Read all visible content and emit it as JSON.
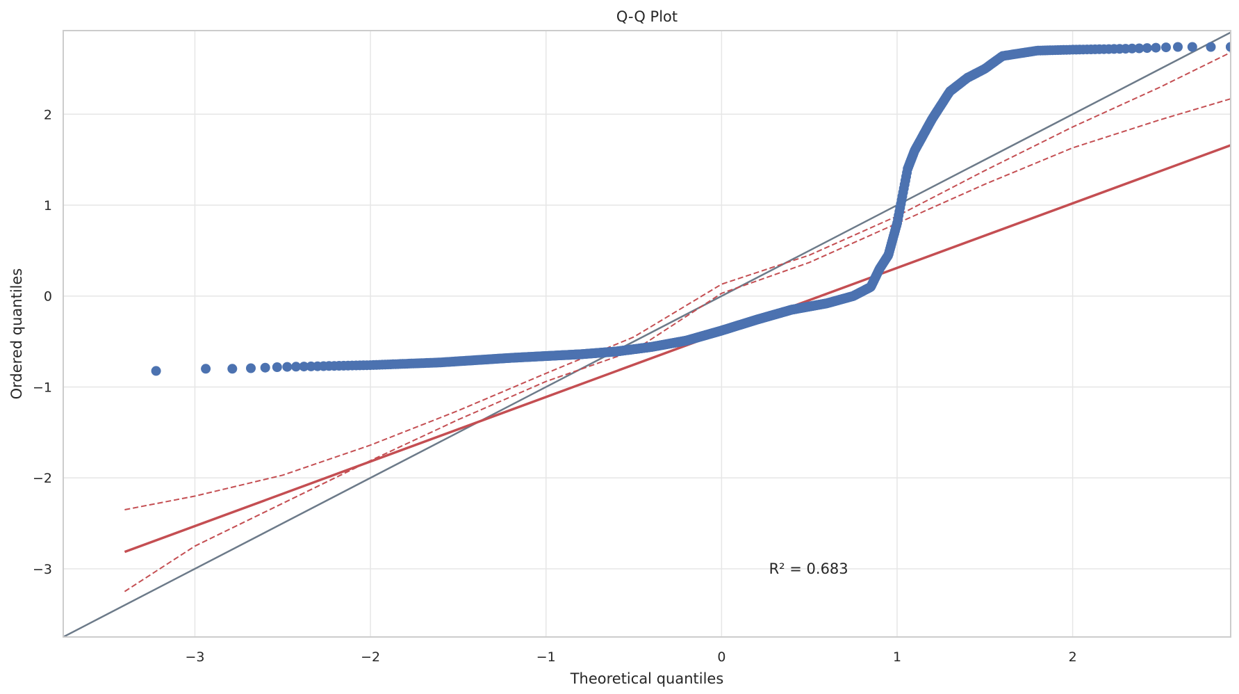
{
  "chart_data": {
    "type": "scatter",
    "title": "Q-Q Plot",
    "xlabel": "Theoretical quantiles",
    "ylabel": "Ordered quantiles",
    "xlim": [
      -3.75,
      2.9
    ],
    "ylim": [
      -3.75,
      2.92
    ],
    "xticks": [
      -3,
      -2,
      -1,
      0,
      1,
      2
    ],
    "yticks": [
      -3,
      -2,
      -1,
      0,
      1,
      2
    ],
    "xtick_labels": [
      "−3",
      "−2",
      "−1",
      "0",
      "1",
      "2"
    ],
    "ytick_labels": [
      "−3",
      "−2",
      "−1",
      "0",
      "1",
      "2"
    ],
    "grid": true,
    "annotation": {
      "text": "R² = 0.683",
      "x": 0.27,
      "y": -3.0
    },
    "colors": {
      "points": "#4c72b0",
      "fit_line": "#c44e52",
      "reference_line": "#6c7a89",
      "grid": "#e6e6e6",
      "frame": "#cccccc"
    },
    "sample_quantile_knots": [
      [
        -3.4,
        -0.85
      ],
      [
        -3.13,
        -0.81
      ],
      [
        -2.99,
        -0.8
      ],
      [
        -2.86,
        -0.8
      ],
      [
        -2.76,
        -0.8
      ],
      [
        -2.5,
        -0.78
      ],
      [
        -2.0,
        -0.76
      ],
      [
        -1.6,
        -0.73
      ],
      [
        -1.2,
        -0.68
      ],
      [
        -1.0,
        -0.66
      ],
      [
        -0.8,
        -0.64
      ],
      [
        -0.6,
        -0.61
      ],
      [
        -0.4,
        -0.56
      ],
      [
        -0.2,
        -0.49
      ],
      [
        0.0,
        -0.38
      ],
      [
        0.2,
        -0.26
      ],
      [
        0.4,
        -0.15
      ],
      [
        0.6,
        -0.08
      ],
      [
        0.75,
        0.0
      ],
      [
        0.85,
        0.1
      ],
      [
        0.9,
        0.3
      ],
      [
        0.95,
        0.45
      ],
      [
        1.0,
        0.8
      ],
      [
        1.03,
        1.1
      ],
      [
        1.06,
        1.4
      ],
      [
        1.1,
        1.6
      ],
      [
        1.2,
        1.95
      ],
      [
        1.3,
        2.25
      ],
      [
        1.4,
        2.4
      ],
      [
        1.5,
        2.5
      ],
      [
        1.6,
        2.64
      ],
      [
        1.8,
        2.7
      ],
      [
        2.0,
        2.71
      ],
      [
        2.3,
        2.72
      ],
      [
        2.6,
        2.74
      ],
      [
        2.9,
        2.74
      ]
    ],
    "point_count": 1000,
    "fit_line": {
      "slope": 0.71,
      "intercept": -0.4,
      "x_range": [
        -3.4,
        2.9
      ]
    },
    "confidence_band": {
      "lower": [
        [
          -3.4,
          -3.25
        ],
        [
          -3.0,
          -2.75
        ],
        [
          -2.5,
          -2.28
        ],
        [
          -2.0,
          -1.81
        ],
        [
          -1.5,
          -1.36
        ],
        [
          -1.0,
          -0.94
        ],
        [
          -0.5,
          -0.6
        ],
        [
          0.0,
          0.03
        ],
        [
          0.5,
          0.37
        ],
        [
          1.0,
          0.8
        ],
        [
          1.5,
          1.23
        ],
        [
          2.0,
          1.63
        ],
        [
          2.5,
          1.94
        ],
        [
          2.9,
          2.17
        ]
      ],
      "upper": [
        [
          -3.4,
          -2.35
        ],
        [
          -3.0,
          -2.2
        ],
        [
          -2.5,
          -1.97
        ],
        [
          -2.0,
          -1.64
        ],
        [
          -1.5,
          -1.26
        ],
        [
          -1.0,
          -0.85
        ],
        [
          -0.5,
          -0.45
        ],
        [
          0.0,
          0.13
        ],
        [
          0.5,
          0.45
        ],
        [
          1.0,
          0.88
        ],
        [
          1.5,
          1.38
        ],
        [
          2.0,
          1.86
        ],
        [
          2.5,
          2.3
        ],
        [
          2.9,
          2.68
        ]
      ]
    }
  }
}
